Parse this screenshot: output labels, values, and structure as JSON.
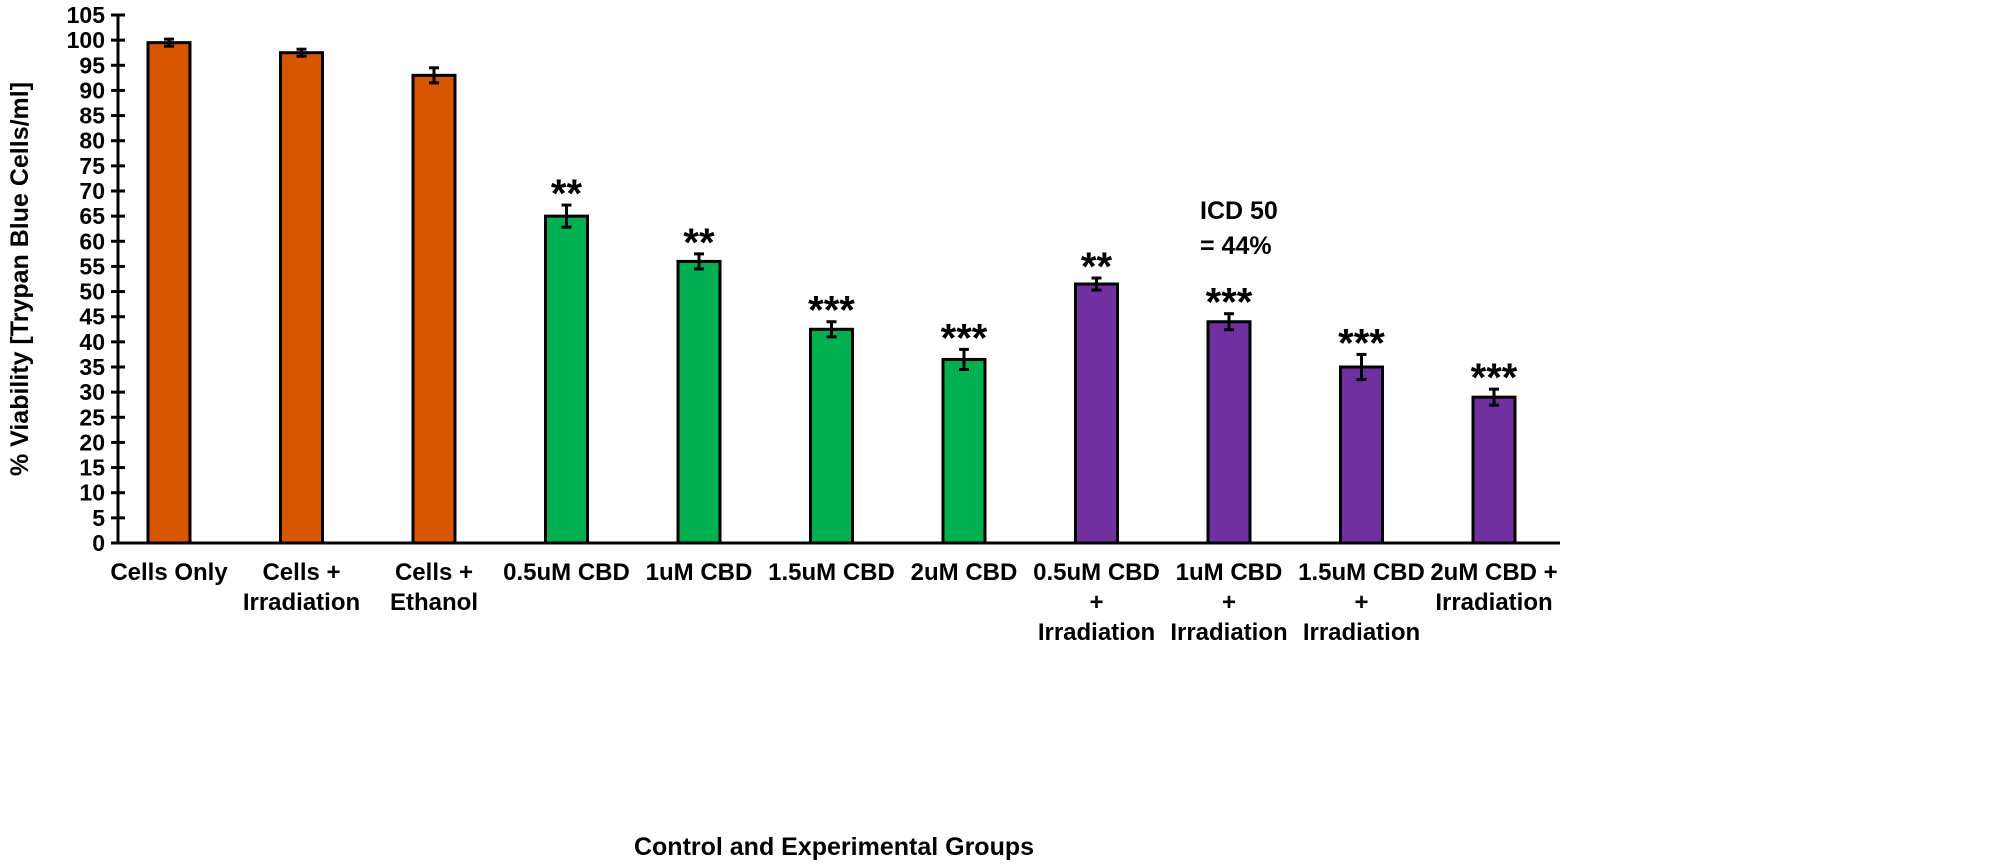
{
  "chart_data": {
    "type": "bar",
    "title": "",
    "xlabel": "Control and Experimental Groups",
    "ylabel": "% Viability [Trypan Blue Cells/ml]",
    "ylim": [
      0,
      105
    ],
    "yticks": [
      0,
      5,
      10,
      15,
      20,
      25,
      30,
      35,
      40,
      45,
      50,
      55,
      60,
      65,
      70,
      75,
      80,
      85,
      90,
      95,
      100,
      105
    ],
    "grid": false,
    "categories": [
      [
        "Cells Only"
      ],
      [
        "Cells +",
        "Irradiation"
      ],
      [
        "Cells +",
        "Ethanol"
      ],
      [
        "0.5uM CBD"
      ],
      [
        "1uM CBD"
      ],
      [
        "1.5uM CBD"
      ],
      [
        "2uM CBD"
      ],
      [
        "0.5uM CBD",
        "+",
        "Irradiation"
      ],
      [
        "1uM CBD",
        "+",
        "Irradiation"
      ],
      [
        "1.5uM CBD",
        "+",
        "Irradiation"
      ],
      [
        "2uM CBD +",
        "Irradiation"
      ]
    ],
    "values": [
      99.5,
      97.5,
      93,
      65,
      56,
      42.5,
      36.5,
      51.5,
      44,
      35,
      29
    ],
    "errors": [
      0.7,
      0.7,
      1.5,
      2.2,
      1.5,
      1.5,
      2.0,
      1.2,
      1.6,
      2.5,
      1.6
    ],
    "significance": [
      "",
      "",
      "",
      "**",
      "**",
      "***",
      "***",
      "**",
      "***",
      "***",
      "***"
    ],
    "colors": [
      "#D95600",
      "#D95600",
      "#D95600",
      "#00B050",
      "#00B050",
      "#00B050",
      "#00B050",
      "#7030A0",
      "#7030A0",
      "#7030A0",
      "#7030A0"
    ],
    "annotation": [
      "ICD 50",
      "= 44%"
    ]
  }
}
